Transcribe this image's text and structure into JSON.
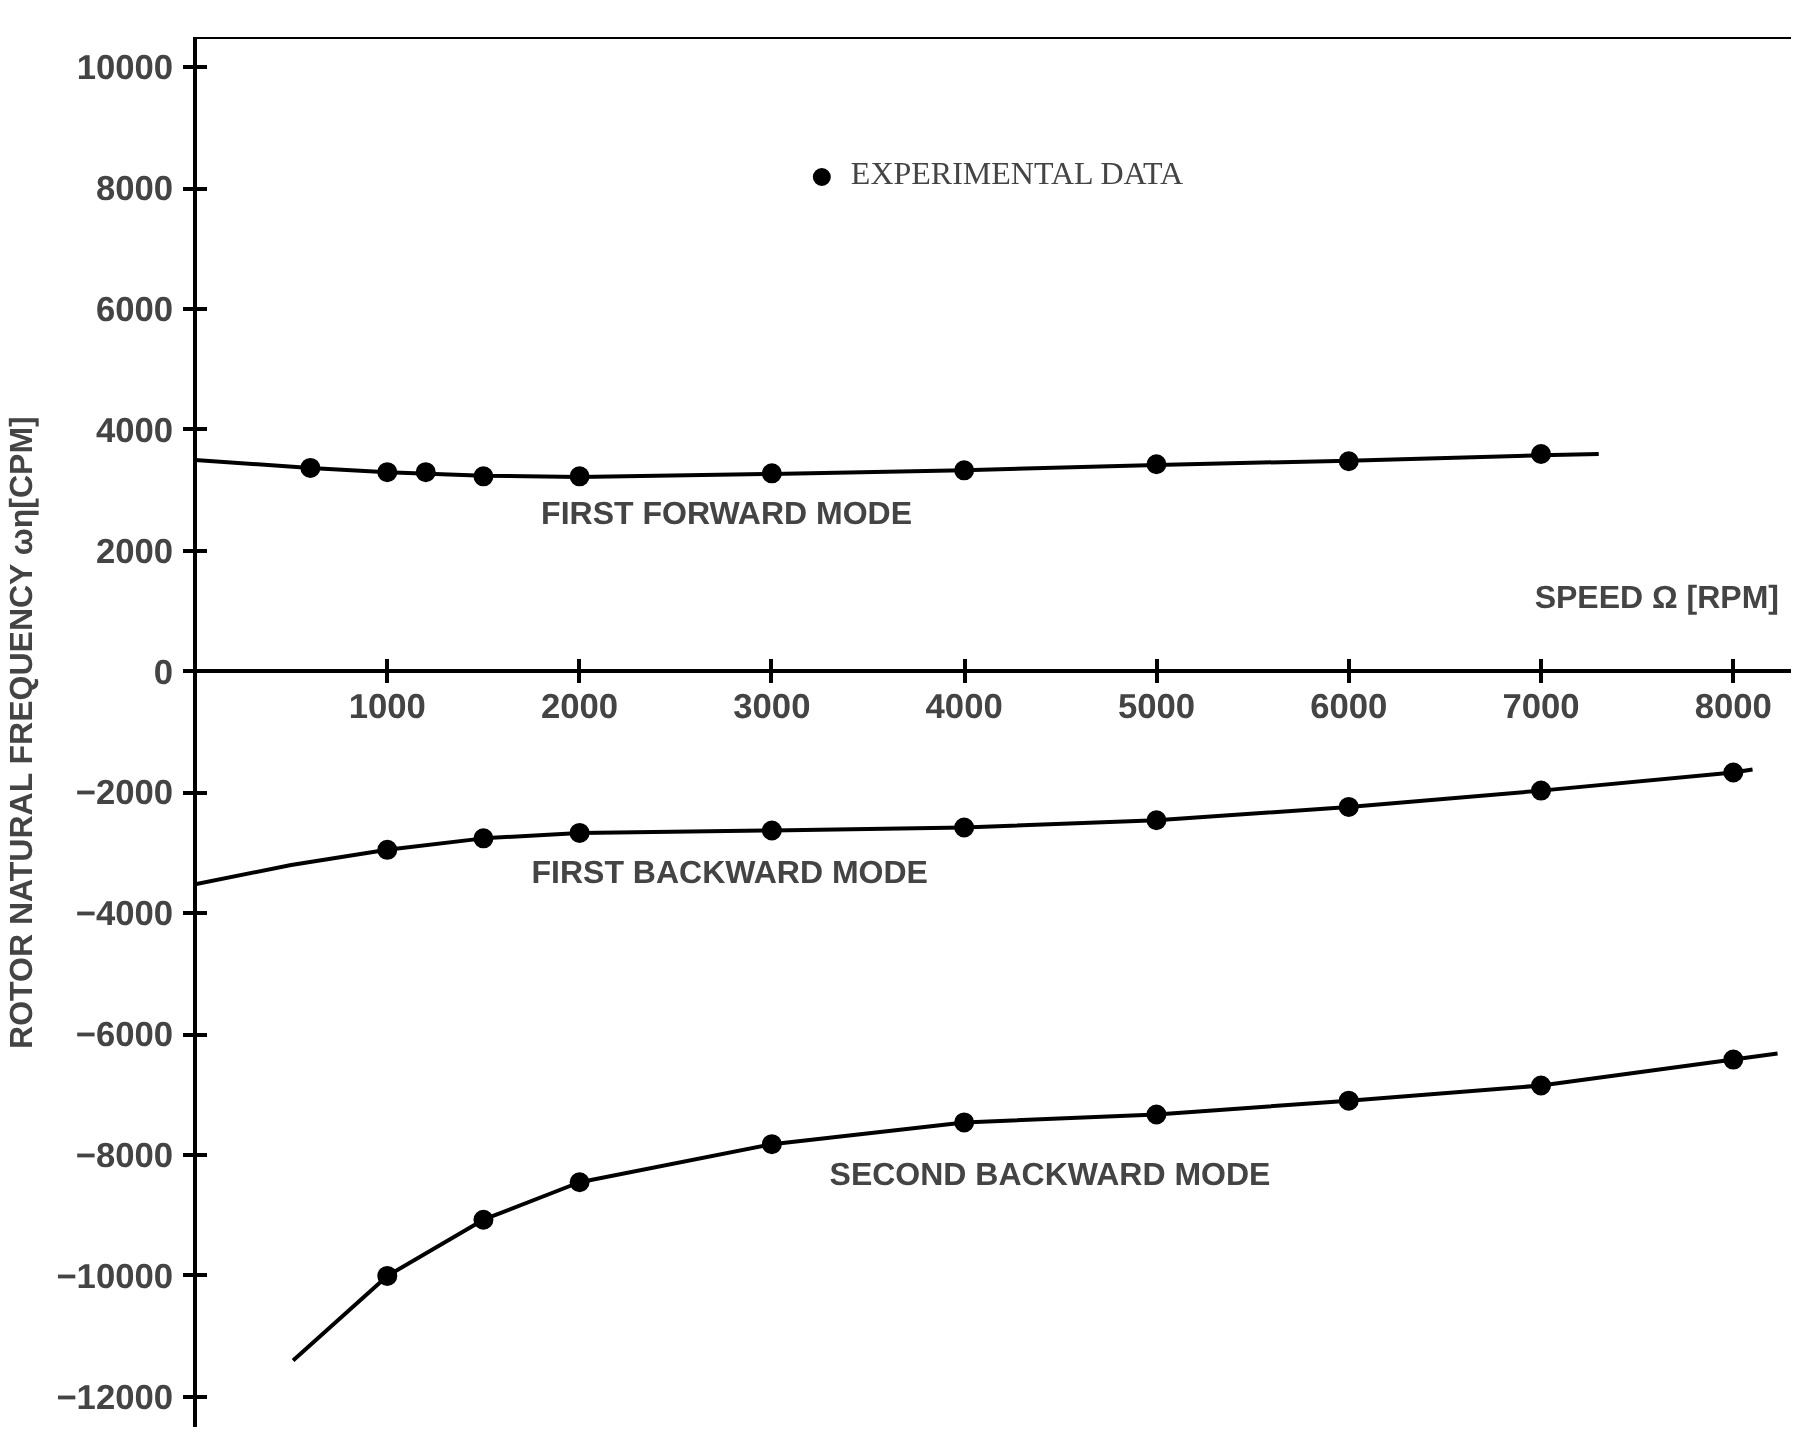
{
  "chart_data": {
    "type": "line",
    "xlabel": "SPEED Ω [RPM]",
    "ylabel": "ROTOR NATURAL FREQUENCY ωη[CPM]",
    "xlim": [
      0,
      8300
    ],
    "ylim": [
      -12500,
      10500
    ],
    "xticks": [
      1000,
      2000,
      3000,
      4000,
      5000,
      6000,
      7000,
      8000
    ],
    "yticks": [
      -12000,
      -10000,
      -8000,
      -6000,
      -4000,
      -2000,
      0,
      2000,
      4000,
      6000,
      8000,
      10000
    ],
    "grid": false,
    "legend": "top",
    "line_style": "solid",
    "series": [
      {
        "color": "#000000",
        "x": [
          0,
          600,
          1000,
          1500,
          2000,
          3000,
          4000,
          5000,
          6000,
          7000,
          7300
        ],
        "values": [
          3500,
          3370,
          3300,
          3240,
          3220,
          3270,
          3330,
          3420,
          3490,
          3580,
          3600
        ]
      },
      {
        "color": "#000000",
        "x": [
          0,
          500,
          1000,
          1500,
          2000,
          3000,
          4000,
          5000,
          6000,
          7000,
          8000,
          8100
        ],
        "values": [
          -3520,
          -3200,
          -2950,
          -2760,
          -2670,
          -2630,
          -2580,
          -2460,
          -2240,
          -1970,
          -1670,
          -1620
        ]
      },
      {
        "color": "#000000",
        "x": [
          510,
          1000,
          1500,
          2000,
          3000,
          4000,
          5000,
          6000,
          7000,
          8000,
          8230
        ],
        "values": [
          -11400,
          -10000,
          -9070,
          -8450,
          -7820,
          -7460,
          -7330,
          -7100,
          -6850,
          -6420,
          -6320
        ]
      },
      {
        "type": "scatter",
        "name": "EXPERIMENTAL DATA",
        "color": "#000000",
        "marker": "circle",
        "x": [
          600,
          1000,
          1200,
          1500,
          2000,
          3000,
          4000,
          5000,
          6000,
          7000,
          1000,
          1500,
          2000,
          3000,
          4000,
          5000,
          6000,
          7000,
          8000,
          1000,
          1500,
          2000,
          3000,
          4000,
          5000,
          6000,
          7000,
          8000
        ],
        "values": [
          3370,
          3300,
          3300,
          3230,
          3230,
          3280,
          3330,
          3430,
          3480,
          3600,
          -2950,
          -2760,
          -2670,
          -2630,
          -2580,
          -2460,
          -2240,
          -1970,
          -1670,
          -10000,
          -9070,
          -8450,
          -7820,
          -7460,
          -7330,
          -7100,
          -6850,
          -6420
        ]
      }
    ],
    "annotations": [
      {
        "text": "FIRST FORWARD MODE",
        "x": 1800,
        "y": 3230
      },
      {
        "text": "FIRST BACKWARD MODE",
        "x": 1750,
        "y": -2700
      },
      {
        "text": "SECOND BACKWARD MODE",
        "x": 3300,
        "y": -7700
      }
    ]
  }
}
